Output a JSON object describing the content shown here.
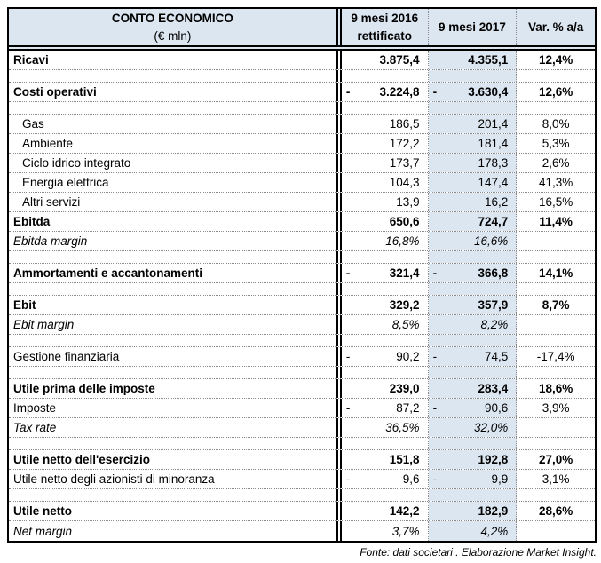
{
  "colors": {
    "header_fill": "#dce6f1",
    "highlight_column_fill": "#dce6f1",
    "border": "#000000",
    "dotted_separator": "#8a8a8a"
  },
  "table": {
    "header": {
      "title_line1": "CONTO ECONOMICO",
      "title_line2": "(€ mln)",
      "col_2016_line1": "9 mesi 2016",
      "col_2016_line2": "rettificato",
      "col_2017": "9 mesi 2017",
      "col_var": "Var. % a/a"
    },
    "rows": [
      {
        "type": "data",
        "style": "bold",
        "label": "Ricavi",
        "s16": "",
        "v16": "3.875,4",
        "s17": "",
        "v17": "4.355,1",
        "var": "12,4%"
      },
      {
        "type": "blank"
      },
      {
        "type": "data",
        "style": "bold",
        "label": "Costi operativi",
        "s16": "-",
        "v16": "3.224,8",
        "s17": "-",
        "v17": "3.630,4",
        "var": "12,6%"
      },
      {
        "type": "blank"
      },
      {
        "type": "data",
        "style": "indent",
        "label": "Gas",
        "s16": "",
        "v16": "186,5",
        "s17": "",
        "v17": "201,4",
        "var": "8,0%"
      },
      {
        "type": "data",
        "style": "indent",
        "label": "Ambiente",
        "s16": "",
        "v16": "172,2",
        "s17": "",
        "v17": "181,4",
        "var": "5,3%"
      },
      {
        "type": "data",
        "style": "indent",
        "label": "Ciclo idrico integrato",
        "s16": "",
        "v16": "173,7",
        "s17": "",
        "v17": "178,3",
        "var": "2,6%"
      },
      {
        "type": "data",
        "style": "indent",
        "label": "Energia elettrica",
        "s16": "",
        "v16": "104,3",
        "s17": "",
        "v17": "147,4",
        "var": "41,3%"
      },
      {
        "type": "data",
        "style": "indent",
        "label": "Altri servizi",
        "s16": "",
        "v16": "13,9",
        "s17": "",
        "v17": "16,2",
        "var": "16,5%"
      },
      {
        "type": "data",
        "style": "bold",
        "label": "Ebitda",
        "s16": "",
        "v16": "650,6",
        "s17": "",
        "v17": "724,7",
        "var": "11,4%"
      },
      {
        "type": "data",
        "style": "italic",
        "label": "Ebitda margin",
        "s16": "",
        "v16": "16,8%",
        "s17": "",
        "v17": "16,6%",
        "var": ""
      },
      {
        "type": "blank"
      },
      {
        "type": "data",
        "style": "bold",
        "label": "Ammortamenti e accantonamenti",
        "s16": "-",
        "v16": "321,4",
        "s17": "-",
        "v17": "366,8",
        "var": "14,1%"
      },
      {
        "type": "blank"
      },
      {
        "type": "data",
        "style": "bold",
        "label": "Ebit",
        "s16": "",
        "v16": "329,2",
        "s17": "",
        "v17": "357,9",
        "var": "8,7%"
      },
      {
        "type": "data",
        "style": "italic",
        "label": "Ebit margin",
        "s16": "",
        "v16": "8,5%",
        "s17": "",
        "v17": "8,2%",
        "var": ""
      },
      {
        "type": "blank"
      },
      {
        "type": "data",
        "style": "normal",
        "label": "Gestione finanziaria",
        "s16": "-",
        "v16": "90,2",
        "s17": "-",
        "v17": "74,5",
        "var": "-17,4%"
      },
      {
        "type": "blank"
      },
      {
        "type": "data",
        "style": "bold",
        "label": "Utile prima delle imposte",
        "s16": "",
        "v16": "239,0",
        "s17": "",
        "v17": "283,4",
        "var": "18,6%"
      },
      {
        "type": "data",
        "style": "normal",
        "label": "Imposte",
        "s16": "-",
        "v16": "87,2",
        "s17": "-",
        "v17": "90,6",
        "var": "3,9%"
      },
      {
        "type": "data",
        "style": "italic",
        "label": "Tax rate",
        "s16": "",
        "v16": "36,5%",
        "s17": "",
        "v17": "32,0%",
        "var": ""
      },
      {
        "type": "blank"
      },
      {
        "type": "data",
        "style": "bold",
        "label": "Utile netto dell'esercizio",
        "s16": "",
        "v16": "151,8",
        "s17": "",
        "v17": "192,8",
        "var": "27,0%"
      },
      {
        "type": "data",
        "style": "normal",
        "label": "Utile netto degli azionisti di minoranza",
        "s16": "-",
        "v16": "9,6",
        "s17": "-",
        "v17": "9,9",
        "var": "3,1%"
      },
      {
        "type": "blank"
      },
      {
        "type": "data",
        "style": "bold",
        "label": "Utile netto",
        "s16": "",
        "v16": "142,2",
        "s17": "",
        "v17": "182,9",
        "var": "28,6%"
      },
      {
        "type": "data",
        "style": "italic",
        "label": "Net margin",
        "s16": "",
        "v16": "3,7%",
        "s17": "",
        "v17": "4,2%",
        "var": ""
      }
    ]
  },
  "footer": {
    "source": "Fonte: dati societari . Elaborazione Market Insight."
  }
}
